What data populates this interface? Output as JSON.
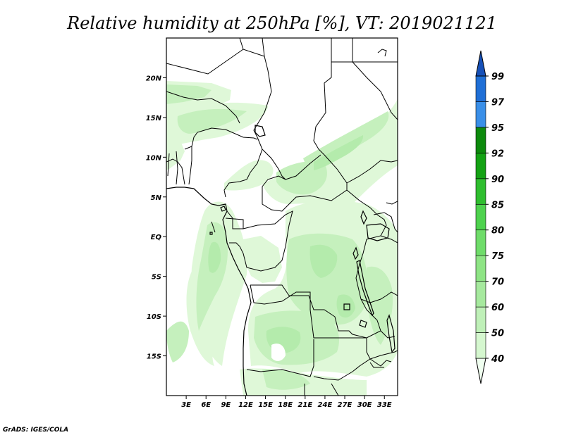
{
  "title": "Relative humidity at 250hPa [%], VT: 2019021121",
  "credit": "GrADS: IGES/COLA",
  "map": {
    "lon_range": [
      0,
      35
    ],
    "lat_range": [
      -20,
      25
    ],
    "lon_ticks": [
      {
        "value": 3,
        "label": "3E"
      },
      {
        "value": 6,
        "label": "6E"
      },
      {
        "value": 9,
        "label": "9E"
      },
      {
        "value": 12,
        "label": "12E"
      },
      {
        "value": 15,
        "label": "15E"
      },
      {
        "value": 18,
        "label": "18E"
      },
      {
        "value": 21,
        "label": "21E"
      },
      {
        "value": 24,
        "label": "24E"
      },
      {
        "value": 27,
        "label": "27E"
      },
      {
        "value": 30,
        "label": "30E"
      },
      {
        "value": 33,
        "label": "33E"
      }
    ],
    "lat_ticks": [
      {
        "value": 20,
        "label": "20N"
      },
      {
        "value": 15,
        "label": "15N"
      },
      {
        "value": 10,
        "label": "10N"
      },
      {
        "value": 5,
        "label": "5N"
      },
      {
        "value": 0,
        "label": "EQ"
      },
      {
        "value": -5,
        "label": "5S"
      },
      {
        "value": -10,
        "label": "10S"
      },
      {
        "value": -15,
        "label": "15S"
      }
    ]
  },
  "colorbar": {
    "levels": [
      "40",
      "50",
      "60",
      "70",
      "75",
      "80",
      "85",
      "90",
      "92",
      "95",
      "97",
      "99"
    ],
    "colors": [
      "#f0fff0",
      "#d5f7cf",
      "#bff0b8",
      "#a6e99e",
      "#8ee485",
      "#6fdc6a",
      "#4ed24e",
      "#2fbe2f",
      "#14a214",
      "#0d8a0d",
      "#3a8fe8",
      "#1f6fd6",
      "#1650b8"
    ]
  },
  "chart_data": {
    "type": "heatmap",
    "title": "Relative humidity at 250hPa [%], VT: 2019021121",
    "variable": "Relative humidity",
    "level": "250hPa",
    "units": "%",
    "valid_time": "2019021121",
    "contour_levels": [
      40,
      50,
      60,
      70,
      75,
      80,
      85,
      90,
      92,
      95,
      97,
      99
    ],
    "region": {
      "lon": [
        0,
        35
      ],
      "lat": [
        -20,
        25
      ]
    },
    "observed_max_range": "60-70"
  }
}
